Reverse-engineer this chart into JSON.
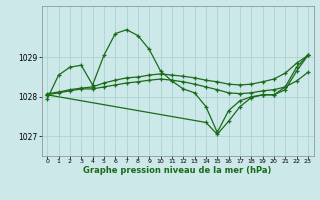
{
  "bg_color": "#cce8e8",
  "grid_color": "#aad4d4",
  "line_color": "#1a6b1a",
  "xlabel": "Graphe pression niveau de la mer (hPa)",
  "ylim": [
    1026.5,
    1030.3
  ],
  "yticks": [
    1027,
    1028,
    1029
  ],
  "xlim": [
    -0.5,
    23.5
  ],
  "xticks": [
    0,
    1,
    2,
    3,
    4,
    5,
    6,
    7,
    8,
    9,
    10,
    11,
    12,
    13,
    14,
    15,
    16,
    17,
    18,
    19,
    20,
    21,
    22,
    23
  ],
  "series": [
    [
      1027.95,
      1028.55,
      1028.75,
      1028.8,
      1028.3,
      1029.05,
      1029.6,
      1029.7,
      1029.55,
      1029.2,
      1028.65,
      1028.4,
      1028.2,
      1028.1,
      1027.75,
      1027.1,
      1027.65,
      1027.9,
      1028.0,
      1028.05,
      1028.05,
      1028.25,
      1028.75,
      1029.05
    ],
    [
      1028.05,
      1028.1,
      1028.15,
      1028.2,
      1028.2,
      1028.25,
      1028.3,
      1028.35,
      1028.38,
      1028.42,
      1028.45,
      1028.42,
      1028.38,
      1028.32,
      1028.25,
      1028.18,
      1028.1,
      1028.08,
      1028.1,
      1028.15,
      1028.18,
      1028.25,
      1028.4,
      1028.62
    ],
    [
      1028.08,
      1028.12,
      1028.18,
      1028.22,
      1028.25,
      1028.35,
      1028.42,
      1028.48,
      1028.5,
      1028.55,
      1028.58,
      1028.55,
      1028.52,
      1028.48,
      1028.42,
      1028.38,
      1028.32,
      1028.3,
      1028.32,
      1028.38,
      1028.45,
      1028.6,
      1028.85,
      1029.05
    ],
    [
      1028.05,
      null,
      null,
      null,
      null,
      null,
      null,
      null,
      null,
      null,
      null,
      null,
      null,
      null,
      1027.35,
      1027.05,
      1027.38,
      1027.75,
      1027.98,
      1028.05,
      1028.05,
      1028.18,
      1028.65,
      1029.05
    ]
  ]
}
